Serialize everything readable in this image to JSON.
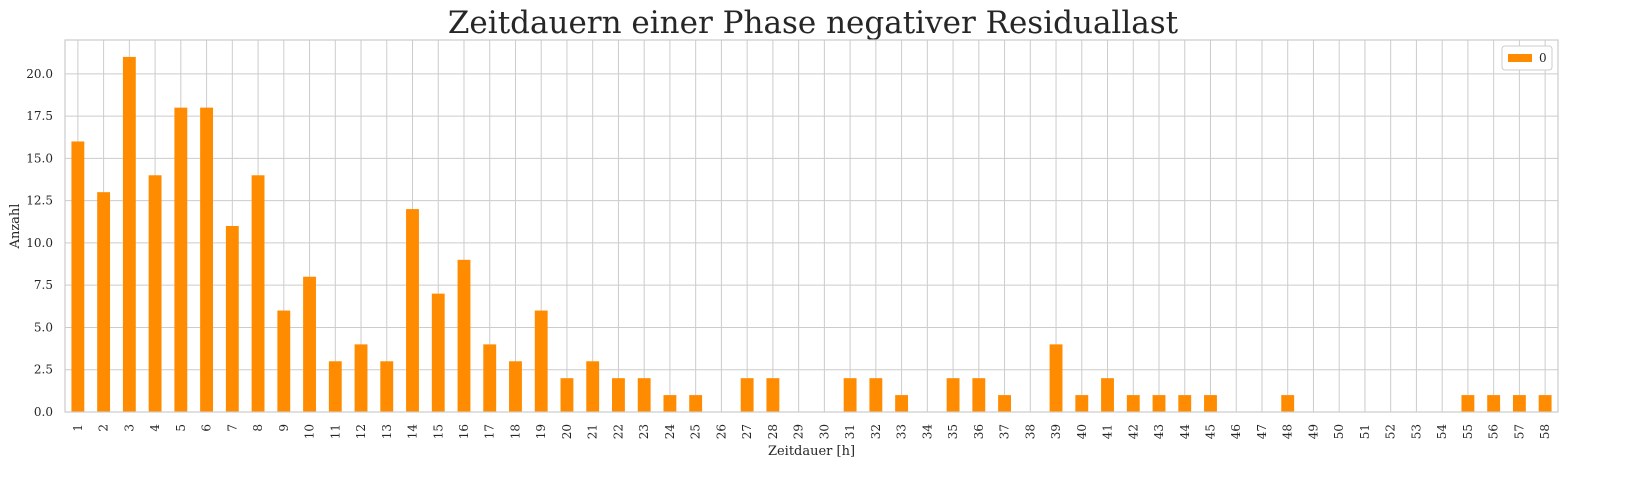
{
  "chart_data": {
    "type": "bar",
    "title": "Zeitdauern einer Phase negativer Residuallast",
    "xlabel": "Zeitdauer [h]",
    "ylabel": "Anzahl",
    "ylim": [
      0,
      22
    ],
    "yticks": [
      "0.0",
      "2.5",
      "5.0",
      "7.5",
      "10.0",
      "12.5",
      "15.0",
      "17.5",
      "20.0"
    ],
    "grid": true,
    "legend_placement": "top-right",
    "categories": [
      "1",
      "2",
      "3",
      "4",
      "5",
      "6",
      "7",
      "8",
      "9",
      "10",
      "11",
      "12",
      "13",
      "14",
      "15",
      "16",
      "17",
      "18",
      "19",
      "20",
      "21",
      "22",
      "23",
      "24",
      "25",
      "26",
      "27",
      "28",
      "29",
      "30",
      "31",
      "32",
      "33",
      "34",
      "35",
      "36",
      "37",
      "38",
      "39",
      "40",
      "41",
      "42",
      "43",
      "44",
      "45",
      "46",
      "47",
      "48",
      "49",
      "50",
      "51",
      "52",
      "53",
      "54",
      "55",
      "56",
      "57",
      "58"
    ],
    "series": [
      {
        "name": "0",
        "color": "#ff8c00",
        "values": [
          16,
          13,
          21,
          14,
          18,
          18,
          11,
          14,
          6,
          8,
          3,
          4,
          3,
          12,
          7,
          9,
          4,
          3,
          6,
          2,
          3,
          2,
          2,
          1,
          1,
          0,
          2,
          2,
          0,
          0,
          2,
          2,
          1,
          0,
          2,
          2,
          1,
          0,
          4,
          1,
          2,
          1,
          1,
          1,
          1,
          0,
          0,
          1,
          0,
          0,
          0,
          0,
          0,
          0,
          1,
          1,
          1,
          1
        ]
      }
    ]
  }
}
